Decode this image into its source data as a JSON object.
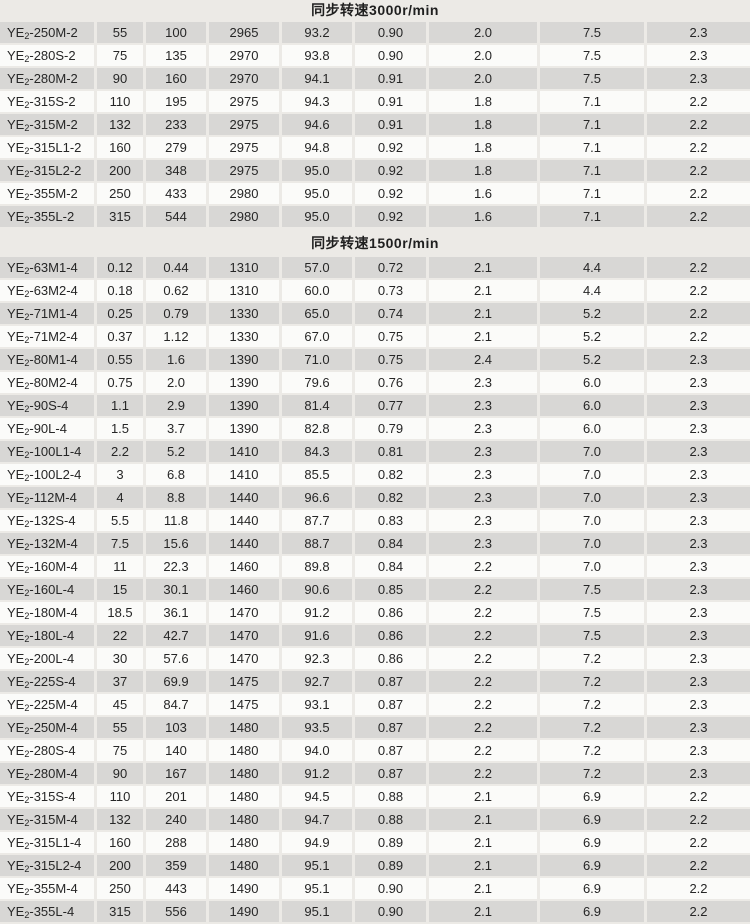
{
  "page": {
    "background": "#eceae6",
    "shade_row_color": "#d8d7d5",
    "plain_row_color": "#fbfbf9",
    "text_color": "#262626"
  },
  "table": {
    "sections": [
      {
        "title": "同步转速3000r/min",
        "rows": [
          [
            "YE₂-250M-2",
            "55",
            "100",
            "2965",
            "93.2",
            "0.90",
            "2.0",
            "7.5",
            "2.3"
          ],
          [
            "YE₂-280S-2",
            "75",
            "135",
            "2970",
            "93.8",
            "0.90",
            "2.0",
            "7.5",
            "2.3"
          ],
          [
            "YE₂-280M-2",
            "90",
            "160",
            "2970",
            "94.1",
            "0.91",
            "2.0",
            "7.5",
            "2.3"
          ],
          [
            "YE₂-315S-2",
            "110",
            "195",
            "2975",
            "94.3",
            "0.91",
            "1.8",
            "7.1",
            "2.2"
          ],
          [
            "YE₂-315M-2",
            "132",
            "233",
            "2975",
            "94.6",
            "0.91",
            "1.8",
            "7.1",
            "2.2"
          ],
          [
            "YE₂-315L1-2",
            "160",
            "279",
            "2975",
            "94.8",
            "0.92",
            "1.8",
            "7.1",
            "2.2"
          ],
          [
            "YE₂-315L2-2",
            "200",
            "348",
            "2975",
            "95.0",
            "0.92",
            "1.8",
            "7.1",
            "2.2"
          ],
          [
            "YE₂-355M-2",
            "250",
            "433",
            "2980",
            "95.0",
            "0.92",
            "1.6",
            "7.1",
            "2.2"
          ],
          [
            "YE₂-355L-2",
            "315",
            "544",
            "2980",
            "95.0",
            "0.92",
            "1.6",
            "7.1",
            "2.2"
          ]
        ]
      },
      {
        "title": "同步转速1500r/min",
        "rows": [
          [
            "YE₂-63M1-4",
            "0.12",
            "0.44",
            "1310",
            "57.0",
            "0.72",
            "2.1",
            "4.4",
            "2.2"
          ],
          [
            "YE₂-63M2-4",
            "0.18",
            "0.62",
            "1310",
            "60.0",
            "0.73",
            "2.1",
            "4.4",
            "2.2"
          ],
          [
            "YE₂-71M1-4",
            "0.25",
            "0.79",
            "1330",
            "65.0",
            "0.74",
            "2.1",
            "5.2",
            "2.2"
          ],
          [
            "YE₂-71M2-4",
            "0.37",
            "1.12",
            "1330",
            "67.0",
            "0.75",
            "2.1",
            "5.2",
            "2.2"
          ],
          [
            "YE₂-80M1-4",
            "0.55",
            "1.6",
            "1390",
            "71.0",
            "0.75",
            "2.4",
            "5.2",
            "2.3"
          ],
          [
            "YE₂-80M2-4",
            "0.75",
            "2.0",
            "1390",
            "79.6",
            "0.76",
            "2.3",
            "6.0",
            "2.3"
          ],
          [
            "YE₂-90S-4",
            "1.1",
            "2.9",
            "1390",
            "81.4",
            "0.77",
            "2.3",
            "6.0",
            "2.3"
          ],
          [
            "YE₂-90L-4",
            "1.5",
            "3.7",
            "1390",
            "82.8",
            "0.79",
            "2.3",
            "6.0",
            "2.3"
          ],
          [
            "YE₂-100L1-4",
            "2.2",
            "5.2",
            "1410",
            "84.3",
            "0.81",
            "2.3",
            "7.0",
            "2.3"
          ],
          [
            "YE₂-100L2-4",
            "3",
            "6.8",
            "1410",
            "85.5",
            "0.82",
            "2.3",
            "7.0",
            "2.3"
          ],
          [
            "YE₂-112M-4",
            "4",
            "8.8",
            "1440",
            "96.6",
            "0.82",
            "2.3",
            "7.0",
            "2.3"
          ],
          [
            "YE₂-132S-4",
            "5.5",
            "11.8",
            "1440",
            "87.7",
            "0.83",
            "2.3",
            "7.0",
            "2.3"
          ],
          [
            "YE₂-132M-4",
            "7.5",
            "15.6",
            "1440",
            "88.7",
            "0.84",
            "2.3",
            "7.0",
            "2.3"
          ],
          [
            "YE₂-160M-4",
            "11",
            "22.3",
            "1460",
            "89.8",
            "0.84",
            "2.2",
            "7.0",
            "2.3"
          ],
          [
            "YE₂-160L-4",
            "15",
            "30.1",
            "1460",
            "90.6",
            "0.85",
            "2.2",
            "7.5",
            "2.3"
          ],
          [
            "YE₂-180M-4",
            "18.5",
            "36.1",
            "1470",
            "91.2",
            "0.86",
            "2.2",
            "7.5",
            "2.3"
          ],
          [
            "YE₂-180L-4",
            "22",
            "42.7",
            "1470",
            "91.6",
            "0.86",
            "2.2",
            "7.5",
            "2.3"
          ],
          [
            "YE₂-200L-4",
            "30",
            "57.6",
            "1470",
            "92.3",
            "0.86",
            "2.2",
            "7.2",
            "2.3"
          ],
          [
            "YE₂-225S-4",
            "37",
            "69.9",
            "1475",
            "92.7",
            "0.87",
            "2.2",
            "7.2",
            "2.3"
          ],
          [
            "YE₂-225M-4",
            "45",
            "84.7",
            "1475",
            "93.1",
            "0.87",
            "2.2",
            "7.2",
            "2.3"
          ],
          [
            "YE₂-250M-4",
            "55",
            "103",
            "1480",
            "93.5",
            "0.87",
            "2.2",
            "7.2",
            "2.3"
          ],
          [
            "YE₂-280S-4",
            "75",
            "140",
            "1480",
            "94.0",
            "0.87",
            "2.2",
            "7.2",
            "2.3"
          ],
          [
            "YE₂-280M-4",
            "90",
            "167",
            "1480",
            "91.2",
            "0.87",
            "2.2",
            "7.2",
            "2.3"
          ],
          [
            "YE₂-315S-4",
            "110",
            "201",
            "1480",
            "94.5",
            "0.88",
            "2.1",
            "6.9",
            "2.2"
          ],
          [
            "YE₂-315M-4",
            "132",
            "240",
            "1480",
            "94.7",
            "0.88",
            "2.1",
            "6.9",
            "2.2"
          ],
          [
            "YE₂-315L1-4",
            "160",
            "288",
            "1480",
            "94.9",
            "0.89",
            "2.1",
            "6.9",
            "2.2"
          ],
          [
            "YE₂-315L2-4",
            "200",
            "359",
            "1480",
            "95.1",
            "0.89",
            "2.1",
            "6.9",
            "2.2"
          ],
          [
            "YE₂-355M-4",
            "250",
            "443",
            "1490",
            "95.1",
            "0.90",
            "2.1",
            "6.9",
            "2.2"
          ],
          [
            "YE₂-355L-4",
            "315",
            "556",
            "1490",
            "95.1",
            "0.90",
            "2.1",
            "6.9",
            "2.2"
          ]
        ]
      }
    ]
  }
}
